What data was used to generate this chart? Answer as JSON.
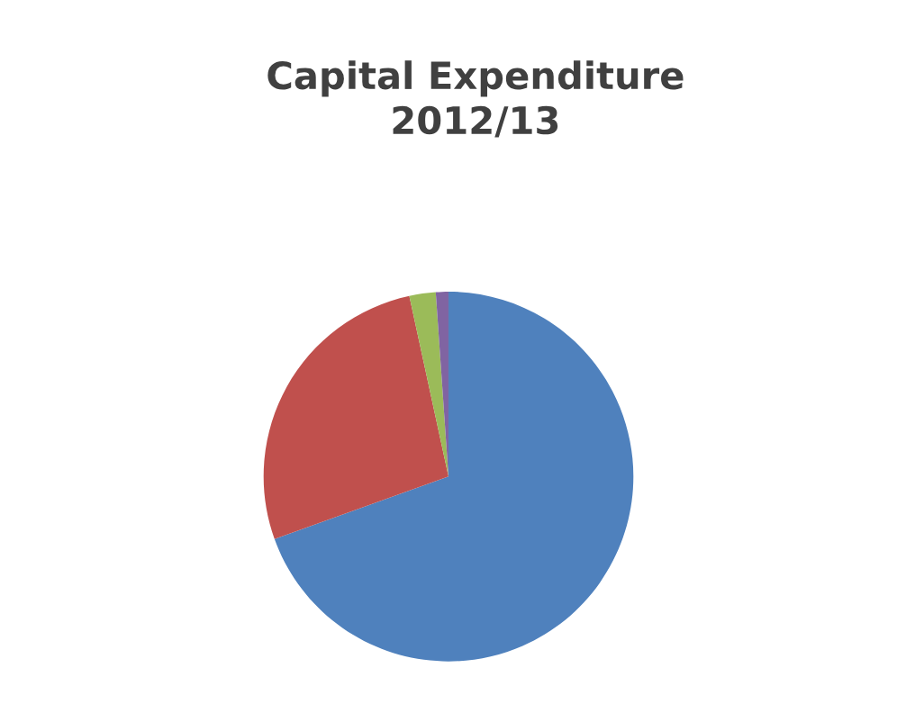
{
  "chart_data": {
    "type": "pie",
    "title": "Capital Expenditure\n2012/13",
    "categories": [
      null,
      null,
      null,
      null
    ],
    "values": [
      69.5,
      27.1,
      2.3,
      1.1
    ],
    "colors": [
      "#4f81bd",
      "#c0504d",
      "#9bbb59",
      "#8064a2"
    ]
  }
}
